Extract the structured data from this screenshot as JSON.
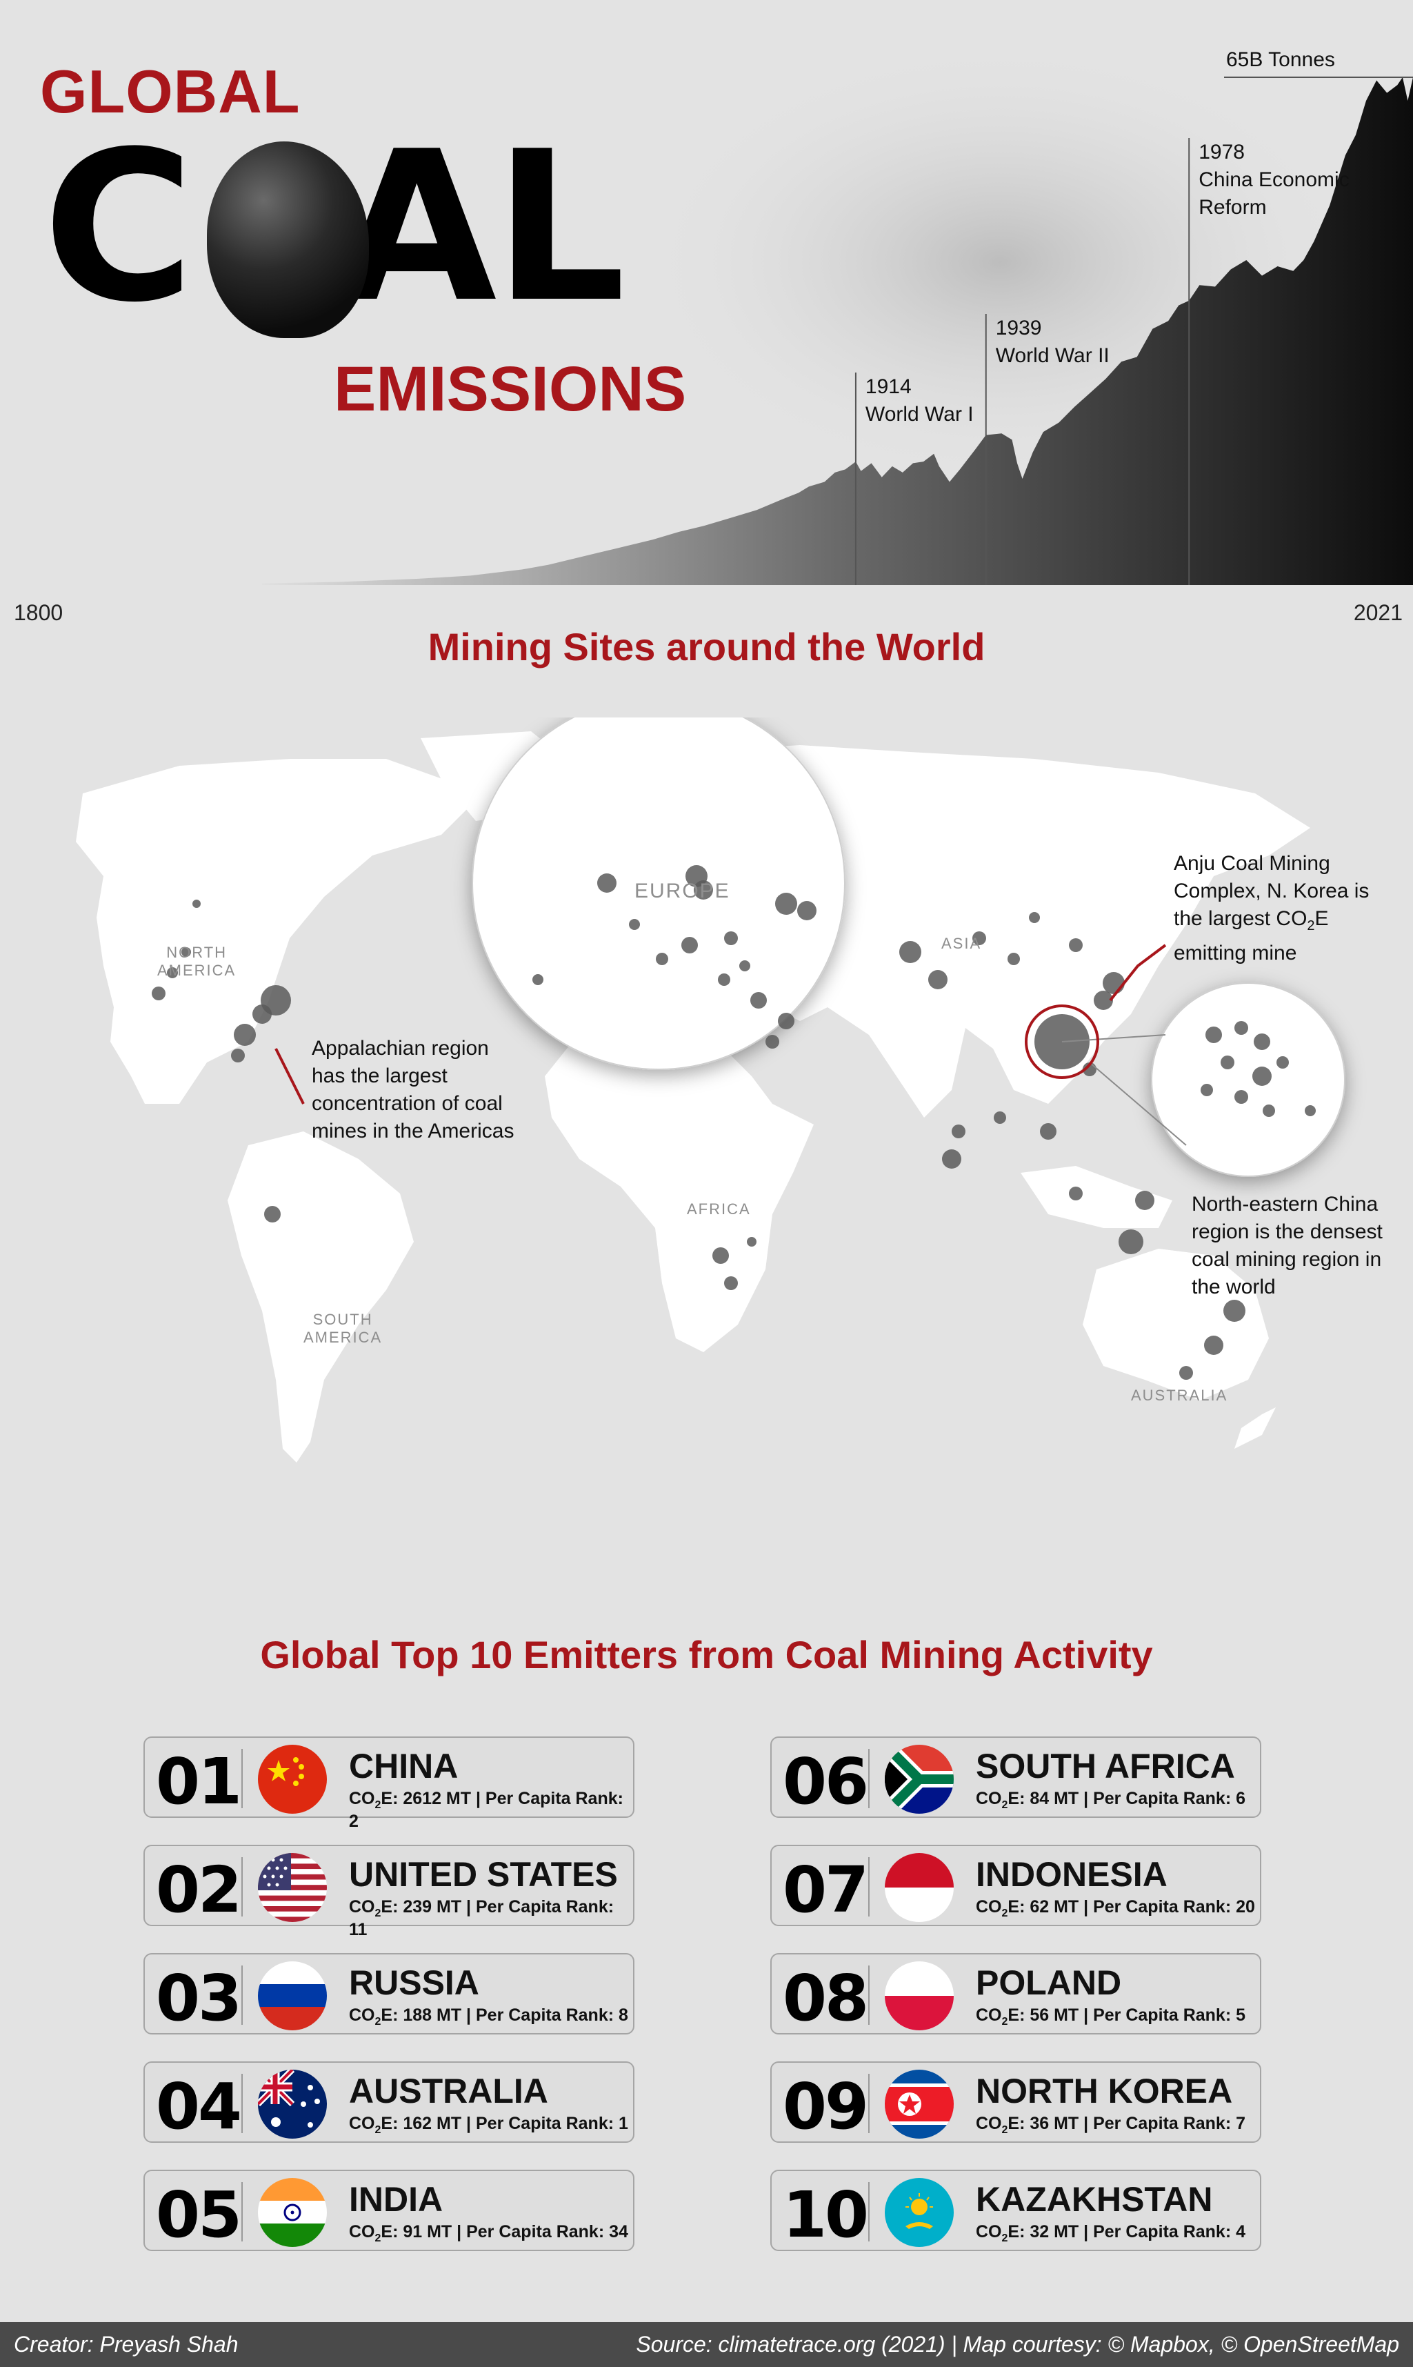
{
  "title": {
    "line1": "GLOBAL",
    "line2_left": "C",
    "line2_right": "AL",
    "line3": "EMISSIONS"
  },
  "chart_data": {
    "type": "area",
    "x_range": [
      1800,
      2021
    ],
    "x_start_label": "1800",
    "x_end_label": "2021",
    "peak_label": "65B Tonnes",
    "colors": {
      "area_light": "#d6d6d6",
      "area_dark": "#0c0c0c",
      "event_line": "#555555"
    },
    "series": [
      {
        "x": [
          1800,
          1815,
          1830,
          1840,
          1850,
          1855,
          1860,
          1865,
          1870,
          1875,
          1880,
          1885,
          1890,
          1895,
          1900,
          1903,
          1905,
          1908,
          1910,
          1912,
          1914,
          1915,
          1917,
          1919,
          1921,
          1923,
          1925,
          1927,
          1929,
          1930,
          1932,
          1934,
          1937,
          1939,
          1942,
          1944,
          1945,
          1946,
          1948,
          1950,
          1953,
          1956,
          1959,
          1962,
          1965,
          1968,
          1971,
          1974,
          1976,
          1978,
          1980,
          1983,
          1986,
          1989,
          1992,
          1995,
          1998,
          2000,
          2002,
          2005,
          2008,
          2010,
          2012,
          2014,
          2016,
          2018,
          2019,
          2020,
          2021
        ],
        "y": [
          0.2,
          0.4,
          0.8,
          1.2,
          2,
          2.6,
          3.4,
          4.2,
          5,
          5.8,
          6.8,
          7.6,
          8.6,
          9.6,
          11,
          11.8,
          12.6,
          13.2,
          14.4,
          14.8,
          15.8,
          14.6,
          15.6,
          13.8,
          15.2,
          14.4,
          15.6,
          15.8,
          16.8,
          15.2,
          13.2,
          14.8,
          17.4,
          19.2,
          19.4,
          18.6,
          15.6,
          13.6,
          17,
          19.6,
          20.8,
          22.8,
          24.6,
          26.4,
          28.6,
          29.2,
          32.8,
          33.8,
          35.8,
          36.4,
          38.4,
          38.2,
          40.4,
          41.6,
          39.6,
          40.8,
          40.2,
          41.6,
          44,
          48.6,
          55,
          57.6,
          62,
          64.6,
          63,
          64,
          65,
          62,
          65
        ]
      }
    ],
    "events": [
      {
        "year": 1914,
        "year_label": "1914",
        "label": "World War I"
      },
      {
        "year": 1939,
        "year_label": "1939",
        "label": "World War II"
      },
      {
        "year": 1978,
        "year_label": "1978",
        "label_line1": "China Economic",
        "label_line2": "Reform"
      }
    ]
  },
  "mining": {
    "title": "Mining Sites around the World",
    "continent_labels": {
      "north_america_1": "NORTH",
      "north_america_2": "AMERICA",
      "south_america_1": "SOUTH",
      "south_america_2": "AMERICA",
      "europe": "EUROPE",
      "asia": "ASIA",
      "africa": "AFRICA",
      "australia": "AUSTRALIA"
    },
    "annotations": {
      "anju_1": "Anju Coal Mining",
      "anju_2": "Complex, N. Korea is",
      "anju_3a": "the largest CO",
      "anju_3b": "2",
      "anju_3c": "E",
      "anju_4": "emitting mine",
      "appalachian_1": "Appalachian region",
      "appalachian_2": "has the largest",
      "appalachian_3": "concentration of coal",
      "appalachian_4": "mines in the Americas",
      "nechina_1": "North-eastern China",
      "nechina_2": "region is the densest",
      "nechina_3": "coal mining region in",
      "nechina_4": "the world"
    }
  },
  "emitters": {
    "title": "Global Top 10 Emitters from Coal Mining Activity",
    "co2_prefix": "CO",
    "co2_sub": "2",
    "list": [
      {
        "rank": "01",
        "name": "CHINA",
        "stat": "E: 2612 MT | Per Capita Rank: 2",
        "flag": "china-flag"
      },
      {
        "rank": "02",
        "name": "UNITED STATES",
        "stat": "E: 239 MT | Per Capita Rank: 11",
        "flag": "usa-flag"
      },
      {
        "rank": "03",
        "name": "RUSSIA",
        "stat": "E: 188 MT | Per Capita Rank: 8",
        "flag": "russia-flag"
      },
      {
        "rank": "04",
        "name": "AUSTRALIA",
        "stat": "E: 162 MT | Per Capita Rank: 1",
        "flag": "australia-flag"
      },
      {
        "rank": "05",
        "name": "INDIA",
        "stat": "E: 91 MT | Per Capita Rank: 34",
        "flag": "india-flag"
      },
      {
        "rank": "06",
        "name": "SOUTH AFRICA",
        "stat": "E: 84 MT | Per Capita Rank: 6",
        "flag": "south-africa-flag"
      },
      {
        "rank": "07",
        "name": "INDONESIA",
        "stat": "E: 62 MT | Per Capita Rank: 20",
        "flag": "indonesia-flag"
      },
      {
        "rank": "08",
        "name": "POLAND",
        "stat": "E: 56 MT | Per Capita Rank: 5",
        "flag": "poland-flag"
      },
      {
        "rank": "09",
        "name": "NORTH KOREA",
        "stat": "E: 36 MT | Per Capita Rank: 7",
        "flag": "north-korea-flag"
      },
      {
        "rank": "10",
        "name": "KAZAKHSTAN",
        "stat": "E: 32 MT | Per Capita Rank: 4",
        "flag": "kazakhstan-flag"
      }
    ]
  },
  "footer": {
    "creator": "Creator: Preyash Shah",
    "source": "Source: climatetrace.org (2021) | Map courtesy: © Mapbox, © OpenStreetMap"
  }
}
